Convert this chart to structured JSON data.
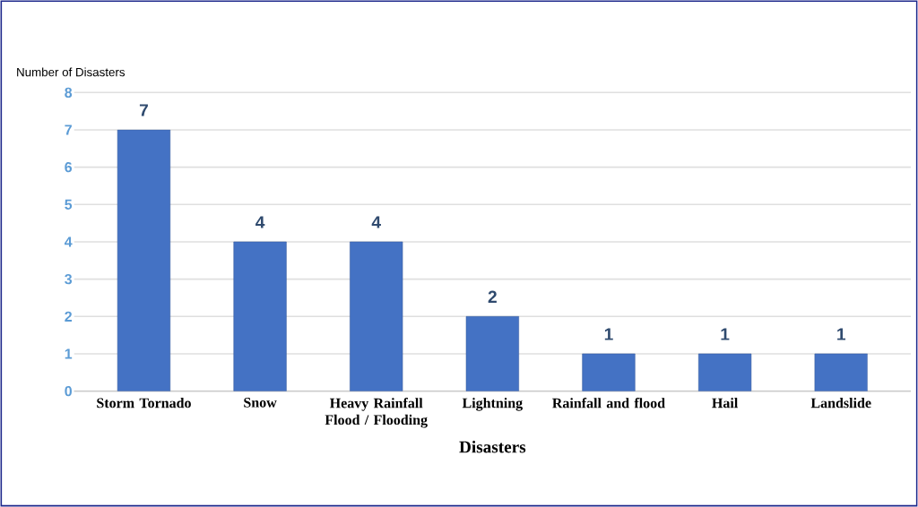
{
  "chart_data": {
    "type": "bar",
    "categories": [
      "Storm Tornado",
      "Snow",
      "Heavy Rainfall Flood / Flooding",
      "Lightning",
      "Rainfall and flood",
      "Hail",
      "Landslide"
    ],
    "values": [
      7,
      4,
      4,
      2,
      1,
      1,
      1
    ],
    "color": "#4472c4",
    "ylim": [
      0,
      8
    ],
    "yticks": [
      0,
      1,
      2,
      3,
      4,
      5,
      6,
      7,
      8
    ],
    "ylabel": "Number of Disasters",
    "xlabel": "Disasters",
    "grid": "y",
    "data_labels": true
  }
}
